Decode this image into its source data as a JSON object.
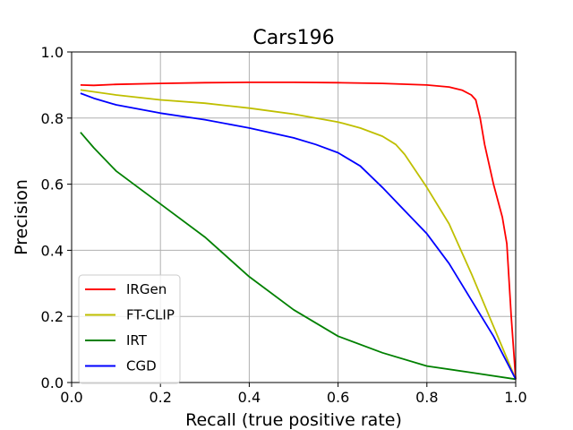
{
  "chart_data": {
    "type": "line",
    "title": "Cars196",
    "xlabel": "Recall (true positive rate)",
    "ylabel": "Precision",
    "xlim": [
      0.0,
      1.0
    ],
    "ylim": [
      0.0,
      1.0
    ],
    "xticks": [
      "0.0",
      "0.2",
      "0.4",
      "0.6",
      "0.8",
      "1.0"
    ],
    "yticks": [
      "0.0",
      "0.2",
      "0.4",
      "0.6",
      "0.8",
      "1.0"
    ],
    "grid": true,
    "legend_position": "lower-left",
    "series": [
      {
        "name": "IRGen",
        "color": "#ff0000",
        "x": [
          0.02,
          0.05,
          0.1,
          0.2,
          0.3,
          0.4,
          0.5,
          0.6,
          0.7,
          0.8,
          0.85,
          0.88,
          0.9,
          0.91,
          0.92,
          0.93,
          0.95,
          0.97,
          0.98,
          0.99,
          1.0
        ],
        "y": [
          0.9,
          0.899,
          0.902,
          0.905,
          0.907,
          0.908,
          0.908,
          0.907,
          0.905,
          0.9,
          0.894,
          0.884,
          0.87,
          0.855,
          0.8,
          0.72,
          0.6,
          0.5,
          0.42,
          0.2,
          0.01
        ]
      },
      {
        "name": "FT-CLIP",
        "color": "#bfbf00",
        "x": [
          0.02,
          0.1,
          0.2,
          0.3,
          0.4,
          0.5,
          0.6,
          0.65,
          0.7,
          0.73,
          0.75,
          0.8,
          0.85,
          0.9,
          0.95,
          1.0
        ],
        "y": [
          0.885,
          0.87,
          0.855,
          0.845,
          0.83,
          0.812,
          0.788,
          0.77,
          0.745,
          0.72,
          0.69,
          0.59,
          0.48,
          0.33,
          0.17,
          0.01
        ]
      },
      {
        "name": "IRT",
        "color": "#008000",
        "x": [
          0.02,
          0.05,
          0.1,
          0.15,
          0.2,
          0.3,
          0.4,
          0.5,
          0.6,
          0.7,
          0.8,
          0.9,
          1.0
        ],
        "y": [
          0.757,
          0.71,
          0.64,
          0.59,
          0.54,
          0.44,
          0.32,
          0.22,
          0.14,
          0.09,
          0.05,
          0.03,
          0.01
        ]
      },
      {
        "name": "CGD",
        "color": "#0000ff",
        "x": [
          0.02,
          0.05,
          0.1,
          0.2,
          0.3,
          0.4,
          0.5,
          0.55,
          0.6,
          0.65,
          0.7,
          0.75,
          0.8,
          0.85,
          0.9,
          0.95,
          1.0
        ],
        "y": [
          0.875,
          0.86,
          0.84,
          0.815,
          0.795,
          0.77,
          0.74,
          0.72,
          0.695,
          0.655,
          0.59,
          0.52,
          0.45,
          0.36,
          0.25,
          0.14,
          0.01
        ]
      }
    ]
  }
}
